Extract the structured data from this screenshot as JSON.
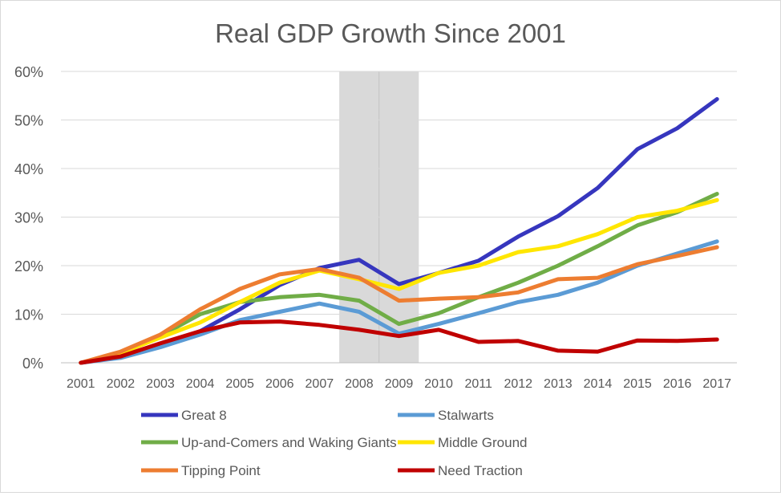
{
  "chart_data": {
    "type": "line",
    "title": "Real GDP Growth Since 2001",
    "xlabel": "",
    "ylabel": "",
    "categories": [
      "2001",
      "2002",
      "2003",
      "2004",
      "2005",
      "2006",
      "2007",
      "2008",
      "2009",
      "2010",
      "2011",
      "2012",
      "2013",
      "2014",
      "2015",
      "2016",
      "2017"
    ],
    "ylim": [
      0,
      60
    ],
    "yticks": [
      "0%",
      "10%",
      "20%",
      "30%",
      "40%",
      "50%",
      "60%"
    ],
    "grid": true,
    "legend_position": "bottom",
    "shaded_ranges": [
      [
        "2008",
        "2009"
      ]
    ],
    "series": [
      {
        "name": "Great 8",
        "color": "#3636be",
        "values": [
          0,
          1.2,
          3.6,
          6.5,
          11.0,
          16.0,
          19.5,
          21.2,
          16.2,
          18.5,
          21.0,
          26.0,
          30.2,
          36.0,
          44.0,
          48.3,
          54.3
        ]
      },
      {
        "name": "Stalwarts",
        "color": "#5b9bd5",
        "values": [
          0,
          1.0,
          3.2,
          5.8,
          8.8,
          10.5,
          12.2,
          10.5,
          6.0,
          8.0,
          10.2,
          12.5,
          14.0,
          16.5,
          20.0,
          22.5,
          25.0
        ]
      },
      {
        "name": "Up-and-Comers and Waking Giants",
        "color": "#70ad47",
        "values": [
          0,
          2.0,
          5.5,
          10.0,
          12.5,
          13.5,
          14.0,
          12.8,
          8.0,
          10.2,
          13.5,
          16.5,
          20.0,
          24.0,
          28.3,
          31.0,
          34.8
        ]
      },
      {
        "name": "Middle Ground",
        "color": "#ffe600",
        "values": [
          0,
          2.0,
          5.2,
          8.3,
          12.5,
          16.5,
          19.0,
          17.2,
          15.2,
          18.5,
          20.0,
          22.8,
          24.0,
          26.5,
          30.0,
          31.3,
          33.5
        ]
      },
      {
        "name": "Tipping Point",
        "color": "#ed7d31",
        "values": [
          0,
          2.3,
          5.8,
          11.0,
          15.2,
          18.2,
          19.3,
          17.5,
          12.8,
          13.2,
          13.5,
          14.5,
          17.2,
          17.5,
          20.3,
          22.0,
          23.8
        ]
      },
      {
        "name": "Need Traction",
        "color": "#c00000",
        "values": [
          0,
          1.3,
          4.0,
          6.5,
          8.3,
          8.5,
          7.8,
          6.8,
          5.5,
          6.8,
          4.3,
          4.5,
          2.5,
          2.3,
          4.6,
          4.5,
          4.8
        ]
      }
    ]
  }
}
